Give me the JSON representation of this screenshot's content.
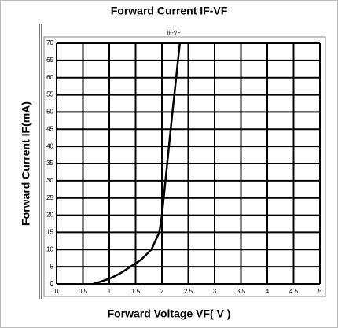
{
  "chart_data": {
    "type": "line",
    "title": "Forward  Current  IF-VF",
    "subtitle": "IF-VF",
    "x_label": "Forward Voltage VF( V )",
    "y_label": "Forward  Current  IF(mA)",
    "x": [
      0.7,
      1.0,
      1.2,
      1.4,
      1.6,
      1.8,
      1.95,
      2.0,
      2.1,
      2.2,
      2.34
    ],
    "values": [
      0,
      1.5,
      3,
      5,
      7,
      10,
      15,
      20,
      35,
      50,
      70
    ],
    "color": "#000000",
    "xlim": [
      0,
      5
    ],
    "xticks": [
      0,
      0.5,
      1,
      1.5,
      2,
      2.5,
      3,
      3.5,
      4,
      4.5,
      5
    ],
    "ylim": [
      0,
      70
    ],
    "yticks": [
      0,
      5,
      10,
      15,
      20,
      25,
      30,
      35,
      40,
      45,
      50,
      55,
      60,
      65,
      70
    ],
    "grid": true
  }
}
